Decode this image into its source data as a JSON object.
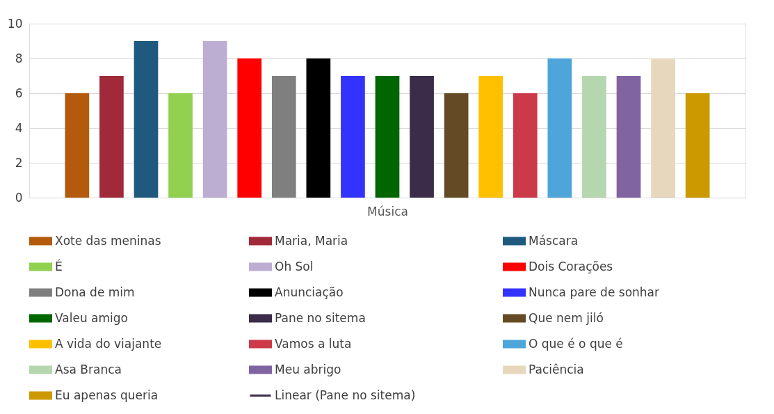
{
  "chart_data": {
    "type": "bar",
    "xlabel": "Música",
    "categories": [
      null
    ],
    "ylim": [
      0,
      10
    ],
    "yticks": [
      0,
      2,
      4,
      6,
      8,
      10
    ],
    "grid": "y",
    "legend": "bottom",
    "tick_labels": "y",
    "series": [
      {
        "name": "Xote das meninas",
        "color": "#b35a0d",
        "values": [
          6
        ]
      },
      {
        "name": "Maria, Maria",
        "color": "#a0293a",
        "values": [
          7
        ]
      },
      {
        "name": "Máscara",
        "color": "#1f5a7e",
        "values": [
          9
        ]
      },
      {
        "name": "É",
        "color": "#92d050",
        "values": [
          6
        ]
      },
      {
        "name": "Oh Sol",
        "color": "#bcaed2",
        "values": [
          9
        ]
      },
      {
        "name": "Dois Corações",
        "color": "#ff0000",
        "values": [
          8
        ]
      },
      {
        "name": "Dona de mim",
        "color": "#7f7f7f",
        "values": [
          7
        ]
      },
      {
        "name": "Anunciação",
        "color": "#000000",
        "values": [
          8
        ]
      },
      {
        "name": "Nunca pare de sonhar",
        "color": "#3333ff",
        "values": [
          7
        ]
      },
      {
        "name": "Valeu amigo",
        "color": "#006600",
        "values": [
          7
        ]
      },
      {
        "name": "Pane no sitema",
        "color": "#3b2c4a",
        "values": [
          7
        ]
      },
      {
        "name": "Que nem jiló",
        "color": "#654b25",
        "values": [
          6
        ]
      },
      {
        "name": "A vida do viajante",
        "color": "#ffc000",
        "values": [
          7
        ]
      },
      {
        "name": "Vamos a luta",
        "color": "#cc3a4a",
        "values": [
          6
        ]
      },
      {
        "name": "O que é o que é",
        "color": "#4ea5da",
        "values": [
          8
        ]
      },
      {
        "name": "Asa Branca",
        "color": "#b5d6ae",
        "values": [
          7
        ]
      },
      {
        "name": "Meu abrigo",
        "color": "#8064a2",
        "values": [
          7
        ]
      },
      {
        "name": "Paciência",
        "color": "#e6d7bd",
        "values": [
          8
        ]
      },
      {
        "name": "Eu apenas queria",
        "color": "#cc9900",
        "values": [
          6
        ]
      },
      {
        "name": "Linear (Pane no sitema)",
        "type": "line",
        "color": "#3b2c4a",
        "values": [
          null
        ]
      }
    ]
  }
}
